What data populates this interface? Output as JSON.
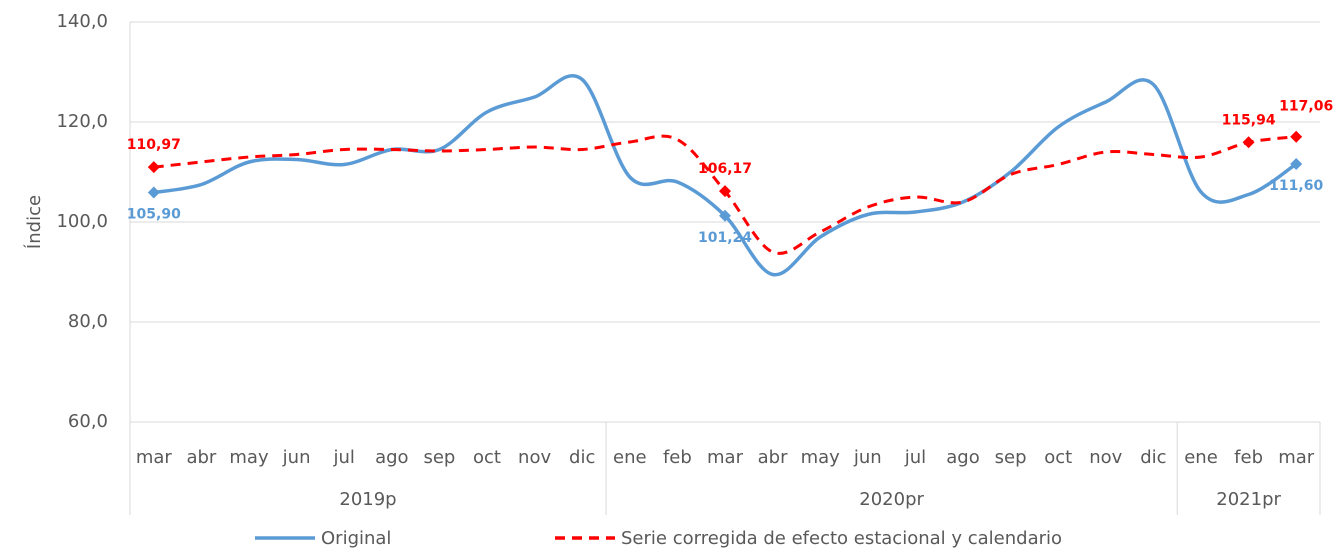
{
  "chart_data": {
    "type": "line",
    "y_label": "Índice",
    "categories": [
      "mar",
      "abr",
      "may",
      "jun",
      "jul",
      "ago",
      "sep",
      "oct",
      "nov",
      "dic",
      "ene",
      "feb",
      "mar",
      "abr",
      "may",
      "jun",
      "jul",
      "ago",
      "sep",
      "oct",
      "nov",
      "dic",
      "ene",
      "feb",
      "mar"
    ],
    "groups": [
      {
        "label": "2019p",
        "count": 10
      },
      {
        "label": "2020pr",
        "count": 12
      },
      {
        "label": "2021pr",
        "count": 3
      }
    ],
    "series": [
      {
        "name": "Original",
        "color": "#5b9bd5",
        "dash": false,
        "values": [
          105.9,
          107.5,
          112,
          112.5,
          111.5,
          114.5,
          114.5,
          122,
          125,
          128.5,
          109,
          108,
          101.24,
          89.5,
          97,
          101.5,
          102,
          104,
          110,
          119,
          124,
          127.5,
          106,
          105.5,
          111.6
        ],
        "value_labels": [
          "105,90",
          null,
          null,
          null,
          null,
          null,
          null,
          null,
          null,
          null,
          null,
          null,
          "101,24",
          null,
          null,
          null,
          null,
          null,
          null,
          null,
          null,
          null,
          null,
          null,
          "111,60"
        ]
      },
      {
        "name": "Serie corregida de efecto estacional y calendario",
        "color": "#ff0000",
        "dash": true,
        "values": [
          110.97,
          112,
          113,
          113.5,
          114.5,
          114.5,
          114.2,
          114.5,
          115,
          114.5,
          116,
          116.5,
          106.17,
          94,
          98,
          103,
          105,
          104,
          109.5,
          111.5,
          114,
          113.5,
          113,
          115.94,
          117.06
        ],
        "value_labels": [
          "110,97",
          null,
          null,
          null,
          null,
          null,
          null,
          null,
          null,
          null,
          null,
          null,
          "106,17",
          null,
          null,
          null,
          null,
          null,
          null,
          null,
          null,
          null,
          null,
          "115,94",
          "117,06"
        ]
      }
    ],
    "ylim": [
      60,
      140
    ],
    "yticks": [
      {
        "value": 60,
        "label": "60,0"
      },
      {
        "value": 80,
        "label": "80,0"
      },
      {
        "value": 100,
        "label": "100,0"
      },
      {
        "value": 120,
        "label": "120,0"
      },
      {
        "value": 140,
        "label": "140,0"
      }
    ],
    "legend": "bottom"
  }
}
